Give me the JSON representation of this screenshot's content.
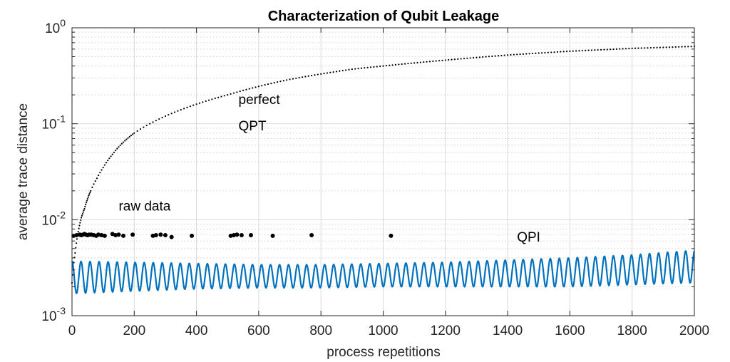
{
  "chart_data": {
    "type": "line",
    "title": "Characterization of Qubit Leakage",
    "xlabel": "process repetitions",
    "ylabel": "average trace distance",
    "xlim": [
      0,
      2000
    ],
    "ylim": [
      0.001,
      1
    ],
    "yscale": "log",
    "grid": true,
    "xticks": [
      "0",
      "200",
      "400",
      "600",
      "800",
      "1000",
      "1200",
      "1400",
      "1600",
      "1800",
      "2000"
    ],
    "yticks": [
      {
        "base": "10",
        "exp": "-3"
      },
      {
        "base": "10",
        "exp": "-2"
      },
      {
        "base": "10",
        "exp": "-1"
      },
      {
        "base": "10",
        "exp": "0"
      }
    ],
    "annotations": [
      {
        "text": "perfect",
        "x": 535,
        "y": 0.16
      },
      {
        "text": "QPT",
        "x": 535,
        "y": 0.085
      },
      {
        "text": "raw data",
        "x": 150,
        "y": 0.0125
      },
      {
        "text": "QPI",
        "x": 1430,
        "y": 0.0059
      }
    ],
    "series": [
      {
        "style": "dotted-line",
        "color": "#000000",
        "x": [
          0,
          10,
          20,
          30,
          40,
          60,
          80,
          100,
          130,
          160,
          200,
          250,
          300,
          350,
          400,
          500,
          600,
          700,
          800,
          900,
          1000,
          1200,
          1400,
          1600,
          1800,
          2000
        ],
        "values": [
          0.0022,
          0.0045,
          0.0075,
          0.0105,
          0.013,
          0.02,
          0.027,
          0.035,
          0.048,
          0.062,
          0.08,
          0.1,
          0.12,
          0.14,
          0.16,
          0.2,
          0.245,
          0.29,
          0.33,
          0.37,
          0.4,
          0.46,
          0.52,
          0.57,
          0.61,
          0.64
        ]
      },
      {
        "style": "markers",
        "color": "#000000",
        "x": [
          5,
          15,
          25,
          30,
          35,
          40,
          45,
          50,
          55,
          62,
          70,
          78,
          85,
          95,
          105,
          130,
          140,
          150,
          165,
          195,
          260,
          270,
          285,
          300,
          320,
          385,
          510,
          520,
          530,
          545,
          575,
          645,
          770,
          1025
        ],
        "values": [
          0.0068,
          0.0069,
          0.007,
          0.0069,
          0.007,
          0.0071,
          0.007,
          0.0069,
          0.007,
          0.007,
          0.0069,
          0.0068,
          0.007,
          0.0069,
          0.0068,
          0.0071,
          0.0069,
          0.007,
          0.0068,
          0.007,
          0.0068,
          0.0069,
          0.007,
          0.0069,
          0.0066,
          0.0068,
          0.0068,
          0.0069,
          0.007,
          0.0069,
          0.0069,
          0.0068,
          0.0069,
          0.0068
        ]
      },
      {
        "style": "oscillating-line",
        "color": "#0072BD",
        "period": 29,
        "x": [
          0,
          200,
          400,
          600,
          800,
          1000,
          1200,
          1400,
          1600,
          1800,
          2000
        ],
        "upper": [
          0.0037,
          0.0036,
          0.0035,
          0.0034,
          0.0034,
          0.0035,
          0.0036,
          0.0038,
          0.004,
          0.0043,
          0.0048
        ],
        "lower": [
          0.0017,
          0.0018,
          0.0019,
          0.00195,
          0.00195,
          0.002,
          0.002,
          0.002,
          0.002,
          0.0021,
          0.0022
        ]
      }
    ]
  }
}
